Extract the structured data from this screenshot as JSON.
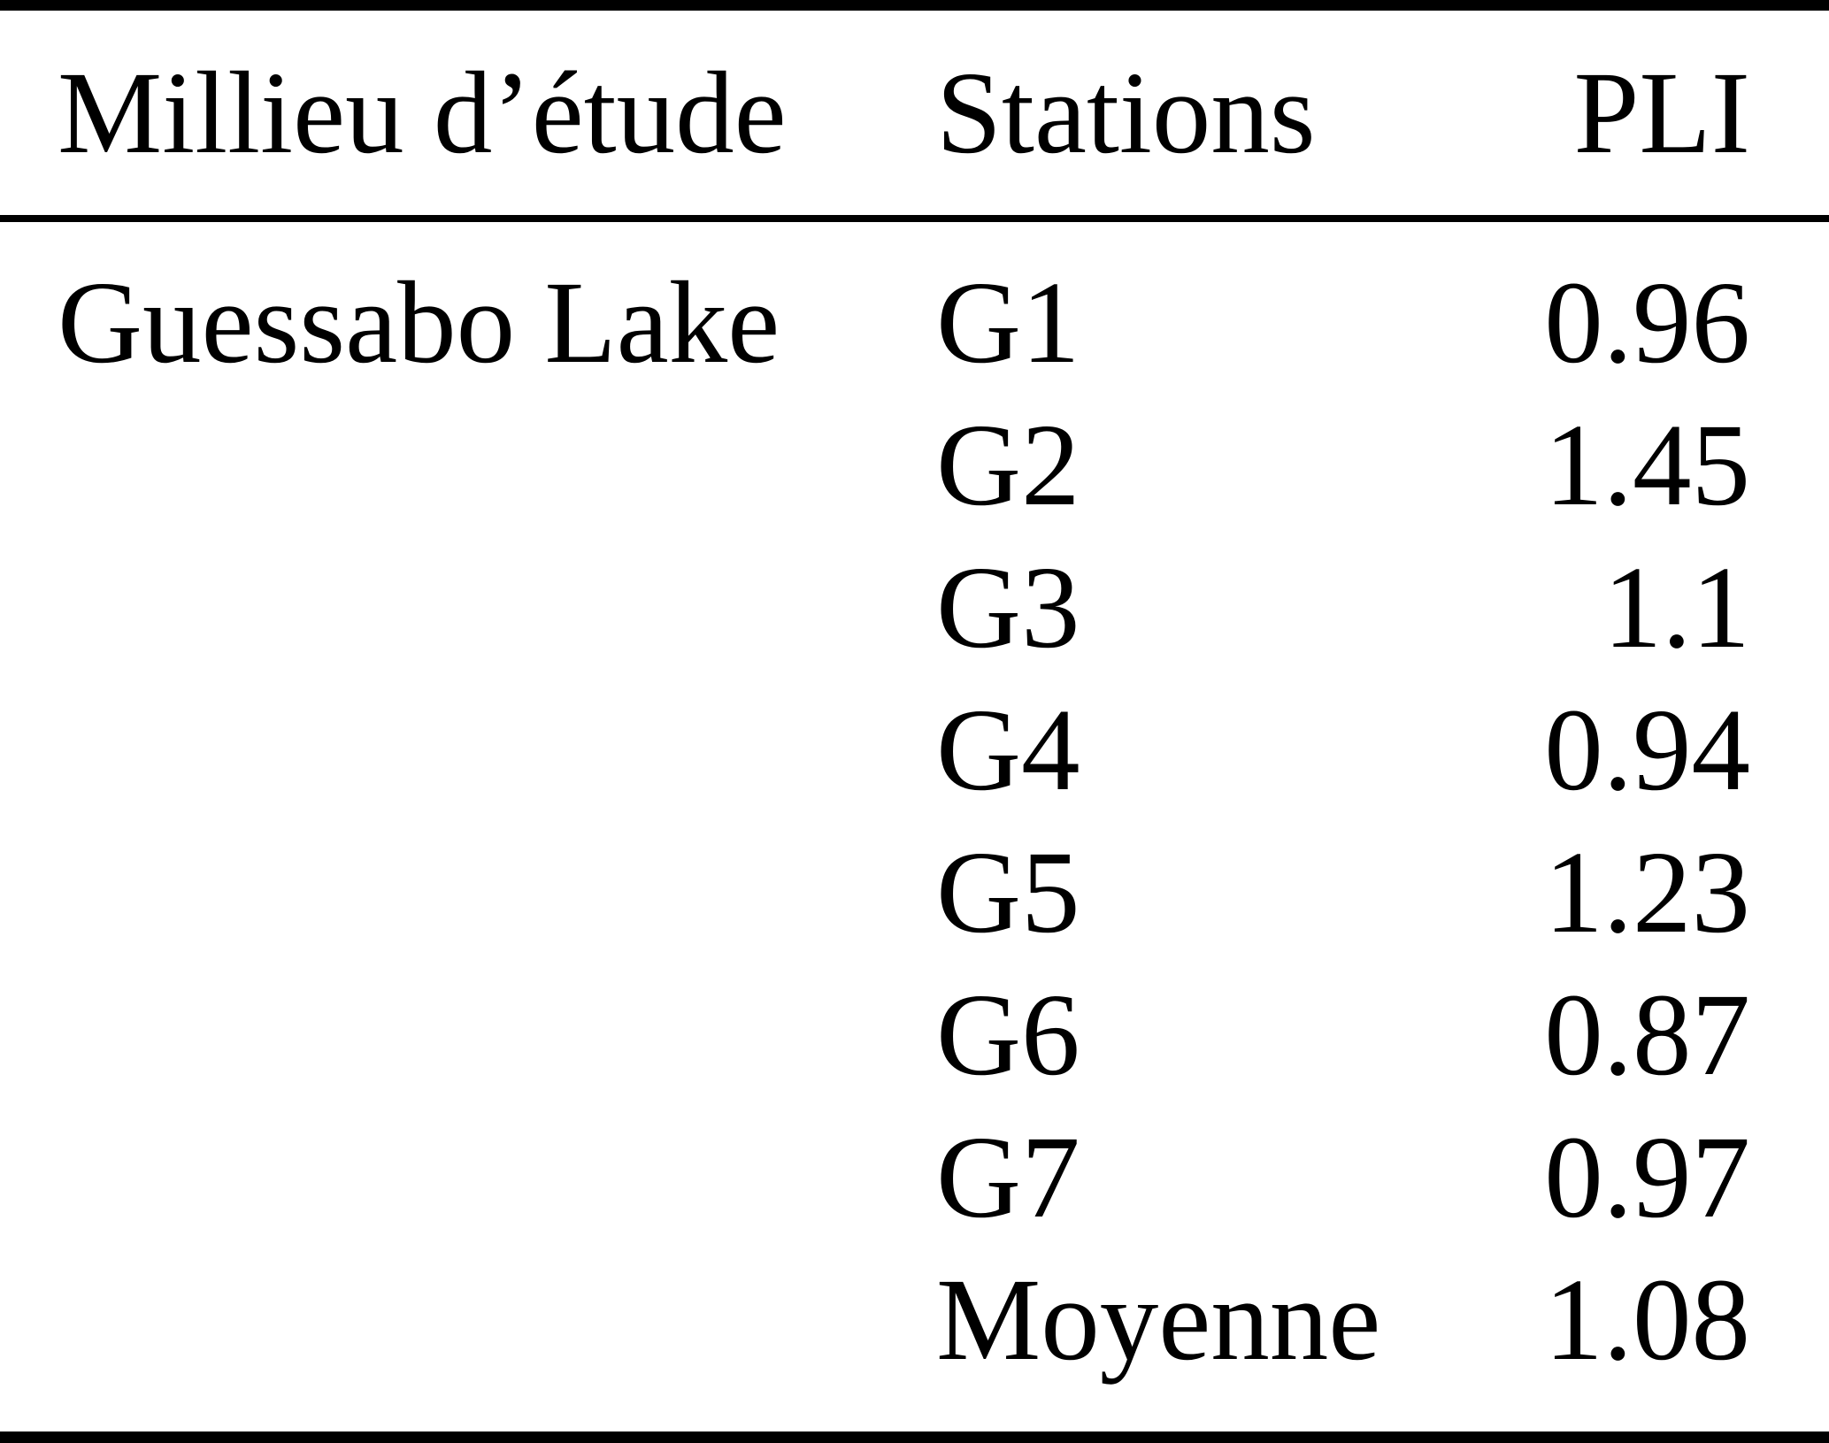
{
  "table": {
    "columns": [
      "Millieu d’étude",
      "Stations",
      "PLI"
    ],
    "rows": [
      {
        "milieu": "Guessabo Lake",
        "station": "G1",
        "pli": "0.96"
      },
      {
        "milieu": "",
        "station": "G2",
        "pli": "1.45"
      },
      {
        "milieu": "",
        "station": "G3",
        "pli": "1.1"
      },
      {
        "milieu": "",
        "station": "G4",
        "pli": "0.94"
      },
      {
        "milieu": "",
        "station": "G5",
        "pli": "1.23"
      },
      {
        "milieu": "",
        "station": "G6",
        "pli": "0.87"
      },
      {
        "milieu": "",
        "station": "G7",
        "pli": "0.97"
      },
      {
        "milieu": "",
        "station": "Moyenne",
        "pli": "1.08"
      }
    ],
    "colors": {
      "text": "#000000",
      "background": "#ffffff",
      "rule": "#000000"
    }
  }
}
